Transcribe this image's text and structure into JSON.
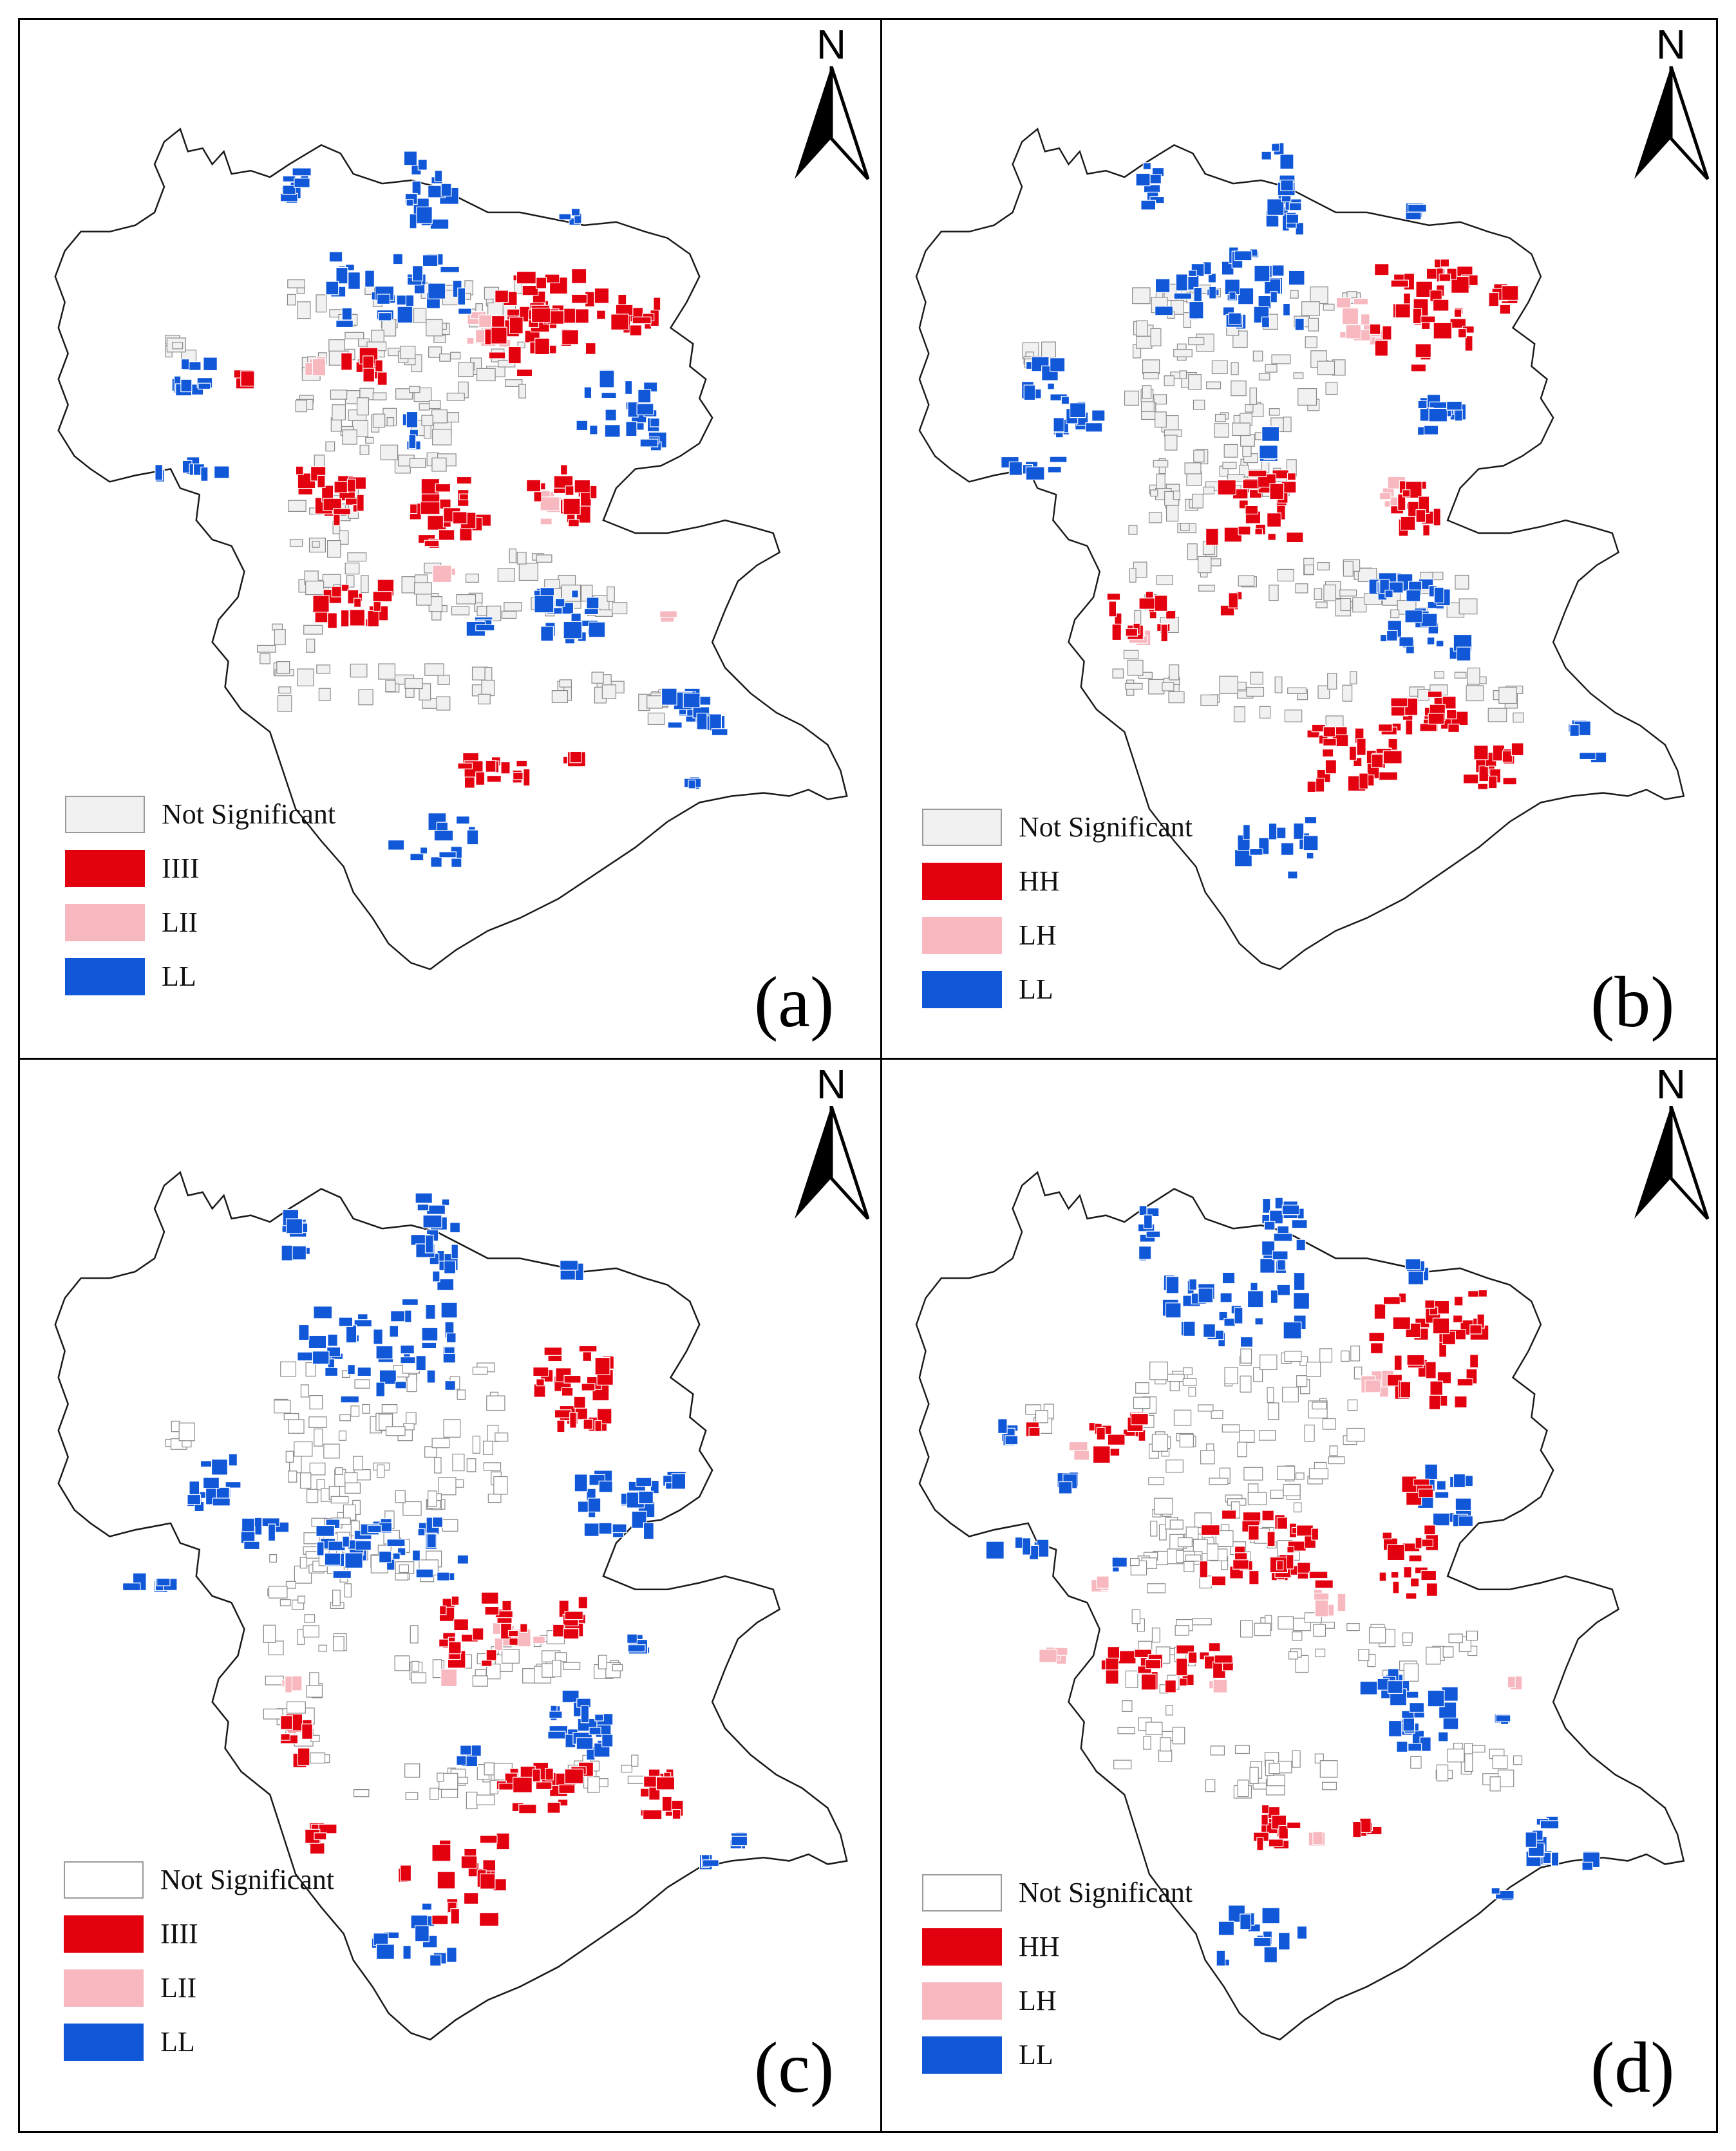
{
  "colors": {
    "not_significant_fill": "#f1f1f1",
    "not_significant_fill_alt": "#ffffff",
    "not_significant_border": "#8a8a8a",
    "hh": "#e3000f",
    "lh": "#f7b8bf",
    "ll": "#1158d8",
    "boundary": "#1a1a1a"
  },
  "north_arrow": {
    "letter": "N",
    "icon": "north-arrow-icon"
  },
  "panels": [
    {
      "id": "a",
      "label": "(a)",
      "legend": [
        "Not Significant",
        "IIII",
        "LII",
        "LL"
      ]
    },
    {
      "id": "b",
      "label": "(b)",
      "legend": [
        "Not Significant",
        "HH",
        "LH",
        "LL"
      ]
    },
    {
      "id": "c",
      "label": "(c)",
      "legend": [
        "Not Significant",
        "IIII",
        "LII",
        "LL"
      ]
    },
    {
      "id": "d",
      "label": "(d)",
      "legend": [
        "Not Significant",
        "HH",
        "LH",
        "LL"
      ]
    }
  ]
}
